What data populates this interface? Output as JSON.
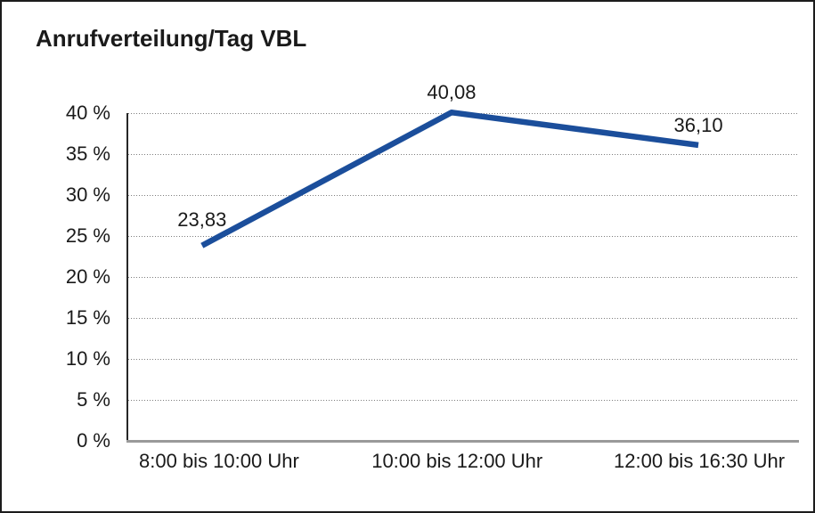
{
  "title": "Anrufverteilung/Tag VBL",
  "chart_data": {
    "type": "line",
    "title": "Anrufverteilung/Tag VBL",
    "categories": [
      "8:00 bis 10:00 Uhr",
      "10:00 bis 12:00 Uhr",
      "12:00 bis 16:30 Uhr"
    ],
    "series": [
      {
        "name": "Anrufverteilung",
        "values": [
          23.83,
          40.08,
          36.1
        ],
        "value_labels": [
          "23,83",
          "40,08",
          "36,10"
        ],
        "color": "#1b4e9b"
      }
    ],
    "xlabel": "",
    "ylabel": "",
    "ylim": [
      0,
      40
    ],
    "yticks": [
      0,
      5,
      10,
      15,
      20,
      25,
      30,
      35,
      40
    ],
    "ytick_labels": [
      "0 %",
      "5 %",
      "10 %",
      "15 %",
      "20 %",
      "25 %",
      "30 %",
      "35 %",
      "40 %"
    ],
    "grid": "horizontal-dotted",
    "legend": "none",
    "colors": {
      "line": "#1b4e9b",
      "grid": "#7d7d7d",
      "y_axis": "#262626",
      "x_axis": "#9a9a9a",
      "text": "#1a1a1a",
      "background": "#ffffff",
      "border": "#1c1c1c"
    }
  }
}
